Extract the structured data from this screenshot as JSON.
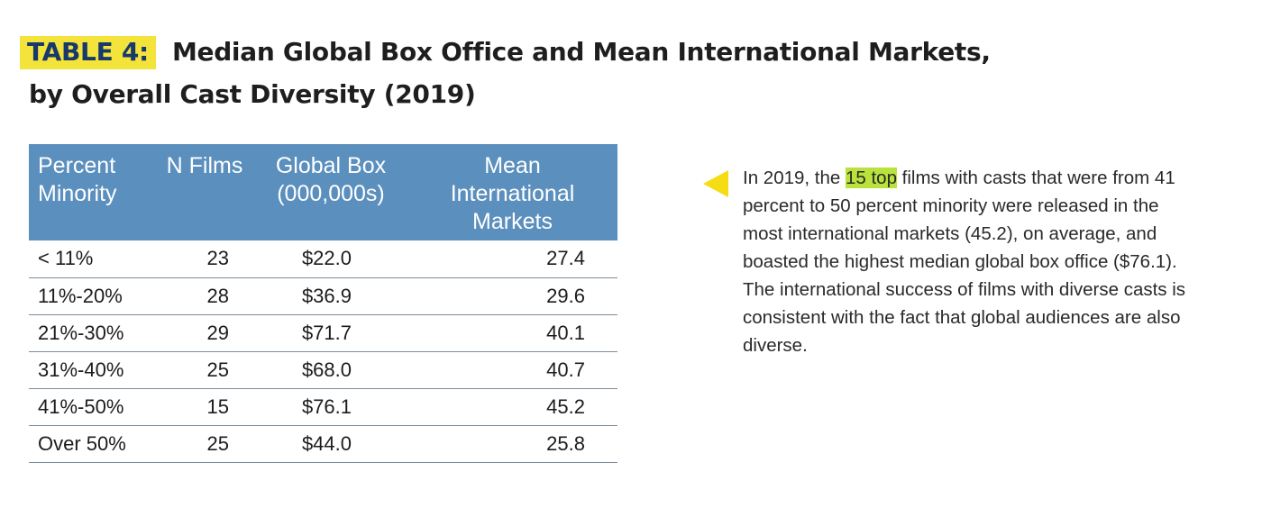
{
  "title": {
    "label": "TABLE 4:",
    "line1": "Median Global Box Office and Mean International Markets,",
    "line2": "by Overall Cast Diversity (2019)"
  },
  "colors": {
    "label_bg": "#f3e33a",
    "label_text": "#17396b",
    "header_bg": "#5b8fbd",
    "pointer": "#f5dc14",
    "highlight": "#b9e23c"
  },
  "table": {
    "headers": [
      [
        "Percent",
        "Minority"
      ],
      [
        "N Films"
      ],
      [
        "Global Box",
        "(000,000s)"
      ],
      [
        "Mean",
        "International",
        "Markets"
      ]
    ],
    "rows": [
      [
        "< 11%",
        "23",
        "$22.0",
        "27.4"
      ],
      [
        "11%-20%",
        "28",
        "$36.9",
        "29.6"
      ],
      [
        "21%-30%",
        "29",
        "$71.7",
        "40.1"
      ],
      [
        "31%-40%",
        "25",
        "$68.0",
        "40.7"
      ],
      [
        "41%-50%",
        "15",
        "$76.1",
        "45.2"
      ],
      [
        "Over 50%",
        "25",
        "$44.0",
        "25.8"
      ]
    ]
  },
  "callout": {
    "pointer_icon": "triangle-left",
    "before": "In 2019, the ",
    "highlight": "15 top",
    "after": " films with casts that were from 41 percent to 50 percent minority were released in the most international markets (45.2), on average, and boasted the highest median global box office ($76.1).  The international success of films with diverse casts is consistent with the fact that global audiences are also diverse."
  }
}
